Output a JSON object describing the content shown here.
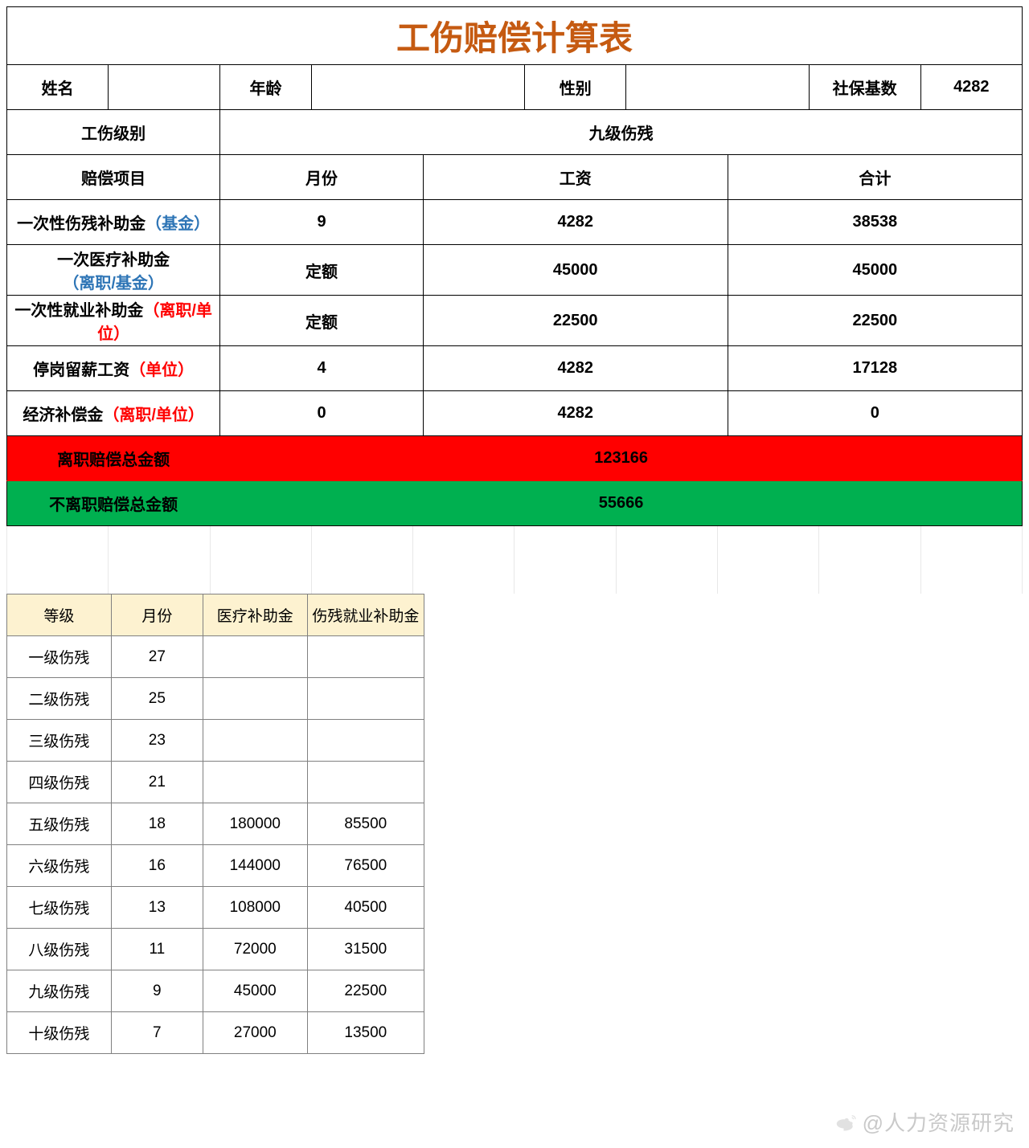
{
  "title": "工伤赔偿计算表",
  "colors": {
    "title": "#c55a11",
    "red_row": "#ff0000",
    "green_row": "#00b050",
    "note_blue": "#2e75b6",
    "note_red": "#ff0000",
    "ref_header_bg": "#fdf2d0"
  },
  "info_row": {
    "name_label": "姓名",
    "name_value": "",
    "age_label": "年龄",
    "age_value": "",
    "gender_label": "性别",
    "gender_value": "",
    "base_label": "社保基数",
    "base_value": "4282"
  },
  "level_row": {
    "label": "工伤级别",
    "value": "九级伤残"
  },
  "columns": {
    "item": "赔偿项目",
    "months": "月份",
    "salary": "工资",
    "total": "合计"
  },
  "items": [
    {
      "name": "一次性伤残补助金",
      "note": "（基金）",
      "note_color": "blue",
      "months": "9",
      "salary": "4282",
      "total": "38538"
    },
    {
      "name": "一次医疗补助金",
      "note": "（离职/基金）",
      "note_color": "blue",
      "months": "定额",
      "salary": "45000",
      "total": "45000"
    },
    {
      "name": "一次性就业补助金",
      "note": "（离职/单位）",
      "note_color": "red",
      "months": "定额",
      "salary": "22500",
      "total": "22500"
    },
    {
      "name": "停岗留薪工资",
      "note": "（单位）",
      "note_color": "red",
      "months": "4",
      "salary": "4282",
      "total": "17128"
    },
    {
      "name": "经济补偿金",
      "note": "（离职/单位）",
      "note_color": "red",
      "months": "0",
      "salary": "4282",
      "total": "0"
    }
  ],
  "summary": {
    "leave_label": "离职赔偿总金额",
    "leave_value": "123166",
    "stay_label": "不离职赔偿总金额",
    "stay_value": "55666"
  },
  "ref_table": {
    "headers": {
      "level": "等级",
      "months": "月份",
      "medical": "医疗补助金",
      "employment": "伤残就业补助金"
    },
    "rows": [
      {
        "level": "一级伤残",
        "months": "27",
        "medical": "",
        "employment": ""
      },
      {
        "level": "二级伤残",
        "months": "25",
        "medical": "",
        "employment": ""
      },
      {
        "level": "三级伤残",
        "months": "23",
        "medical": "",
        "employment": ""
      },
      {
        "level": "四级伤残",
        "months": "21",
        "medical": "",
        "employment": ""
      },
      {
        "level": "五级伤残",
        "months": "18",
        "medical": "180000",
        "employment": "85500"
      },
      {
        "level": "六级伤残",
        "months": "16",
        "medical": "144000",
        "employment": "76500"
      },
      {
        "level": "七级伤残",
        "months": "13",
        "medical": "108000",
        "employment": "40500"
      },
      {
        "level": "八级伤残",
        "months": "11",
        "medical": "72000",
        "employment": "31500"
      },
      {
        "level": "九级伤残",
        "months": "9",
        "medical": "45000",
        "employment": "22500"
      },
      {
        "level": "十级伤残",
        "months": "7",
        "medical": "27000",
        "employment": "13500"
      }
    ]
  },
  "watermark": "@人力资源研究"
}
